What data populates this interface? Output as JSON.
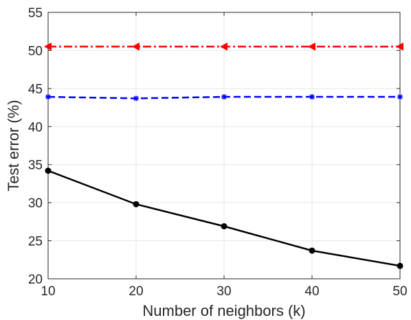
{
  "chart_data": {
    "type": "line",
    "xlabel": "Number of neighbors (k)",
    "ylabel": "Test error (%)",
    "x": [
      10,
      20,
      30,
      40,
      50
    ],
    "xlim": [
      10,
      50
    ],
    "ylim": [
      20,
      55
    ],
    "xticks": [
      10,
      20,
      30,
      40,
      50
    ],
    "yticks": [
      20,
      25,
      30,
      35,
      40,
      45,
      50,
      55
    ],
    "grid": true,
    "legend": "none",
    "series": [
      {
        "color": "#ff0000",
        "line_style": "dash-dot",
        "marker": "left-triangle",
        "values": [
          50.5,
          50.5,
          50.5,
          50.5,
          50.5
        ]
      },
      {
        "color": "#0000ff",
        "line_style": "dashed",
        "marker": "asterisk",
        "values": [
          43.9,
          43.7,
          43.9,
          43.9,
          43.9
        ]
      },
      {
        "color": "#000000",
        "line_style": "solid",
        "marker": "filled-circle",
        "values": [
          34.2,
          29.8,
          26.9,
          23.7,
          21.7
        ]
      }
    ]
  }
}
